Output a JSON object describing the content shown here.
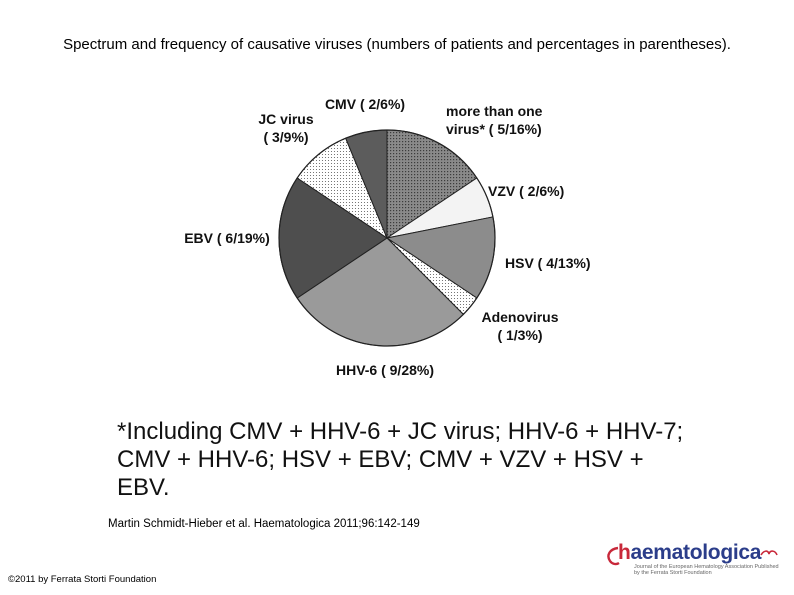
{
  "title": "Spectrum and frequency of causative viruses (numbers of patients and percentages in parentheses).",
  "chart_data": {
    "type": "pie",
    "title": "",
    "slices": [
      {
        "label": "more than one virus* ( 5/16%)",
        "value": 5,
        "color": "#6e6e6e",
        "pattern": "grid"
      },
      {
        "label": "VZV ( 2/6%)",
        "value": 2,
        "color": "#f3f3f3",
        "pattern": "solid"
      },
      {
        "label": "HSV ( 4/13%)",
        "value": 4,
        "color": "#8c8c8c",
        "pattern": "solid"
      },
      {
        "label": "Adenovirus ( 1/3%)",
        "value": 1,
        "color": "#dcdcdc",
        "pattern": "dots"
      },
      {
        "label": "HHV-6 ( 9/28%)",
        "value": 9,
        "color": "#9a9a9a",
        "pattern": "solid"
      },
      {
        "label": "EBV ( 6/19%)",
        "value": 6,
        "color": "#4e4e4e",
        "pattern": "solid"
      },
      {
        "label": "JC virus ( 3/9%)",
        "value": 3,
        "color": "#e8e8e8",
        "pattern": "dots"
      },
      {
        "label": "CMV ( 2/6%)",
        "value": 2,
        "color": "#5c5c5c",
        "pattern": "solid"
      }
    ]
  },
  "footnote": "*Including CMV + HHV-6 + JC virus; HHV-6 + HHV-7; CMV + HHV-6; HSV + EBV; CMV + VZV + HSV + EBV.",
  "citation": "Martin Schmidt-Hieber et al. Haematologica 2011;96:142-149",
  "copyright": "©2011 by Ferrata Storti Foundation",
  "logo": {
    "prefix": "h",
    "name": "aematologica",
    "tagline": "Journal of the European Hematology Association Published by the Ferrata Storti Foundation"
  }
}
